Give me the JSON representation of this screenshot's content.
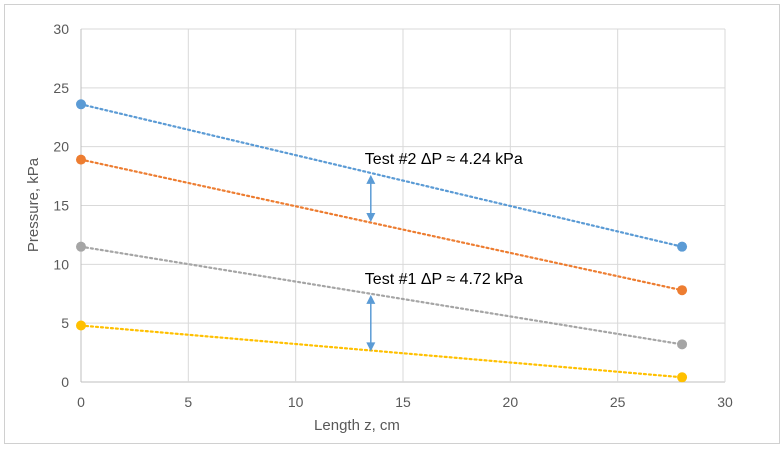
{
  "chart_data": {
    "type": "scatter",
    "title": "",
    "xlabel": "Length z, cm",
    "ylabel": "Pressure, kPa",
    "xlim": [
      0,
      30
    ],
    "ylim": [
      0,
      30
    ],
    "xticks": [
      0,
      5,
      10,
      15,
      20,
      25,
      30
    ],
    "yticks": [
      0,
      5,
      10,
      15,
      20,
      25,
      30
    ],
    "grid": true,
    "legend": "none",
    "series": [
      {
        "color": "#5B9BD5",
        "x": [
          0,
          28
        ],
        "y": [
          23.6,
          11.5
        ],
        "trendline": "linear-dotted"
      },
      {
        "color": "#ED7D31",
        "x": [
          0,
          28
        ],
        "y": [
          18.9,
          7.8
        ],
        "trendline": "linear-dotted"
      },
      {
        "color": "#A5A5A5",
        "x": [
          0,
          28
        ],
        "y": [
          11.5,
          3.2
        ],
        "trendline": "linear-dotted"
      },
      {
        "color": "#FFC000",
        "x": [
          0,
          28
        ],
        "y": [
          4.8,
          0.4
        ],
        "trendline": "linear-dotted"
      }
    ],
    "annotations": [
      {
        "text": "Test #2  ΔP ≈ 4.24 kPa",
        "arrow_x": 13.5,
        "arrow_y": [
          17.6,
          13.6
        ],
        "arrow_color": "#5B9BD5"
      },
      {
        "text": "Test #1  ΔP ≈ 4.72 kPa",
        "arrow_x": 13.5,
        "arrow_y": [
          7.4,
          2.6
        ],
        "arrow_color": "#5B9BD5"
      }
    ]
  }
}
